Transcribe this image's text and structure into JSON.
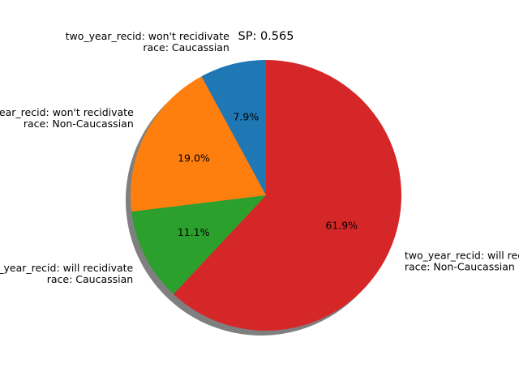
{
  "chart_data": {
    "type": "pie",
    "title": "SP: 0.565",
    "start_angle_deg": 90,
    "direction": "counterclockwise",
    "shadow": true,
    "slices": [
      {
        "label_line1": "two_year_recid: won't recidivate",
        "label_line2": "race: Caucassian",
        "value": 7.9,
        "pct_label": "7.9%",
        "color": "#1f77b4"
      },
      {
        "label_line1": "two_year_recid: won't recidivate",
        "label_line2": "race: Non-Caucassian",
        "value": 19.0,
        "pct_label": "19.0%",
        "color": "#ff7f0e"
      },
      {
        "label_line1": "two_year_recid: will recidivate",
        "label_line2": "race: Caucassian",
        "value": 11.1,
        "pct_label": "11.1%",
        "color": "#2ca02c"
      },
      {
        "label_line1": "two_year_recid: will recidivate",
        "label_line2": "race: Non-Caucassian",
        "value": 61.9,
        "pct_label": "61.9%",
        "color": "#d62728"
      }
    ]
  }
}
